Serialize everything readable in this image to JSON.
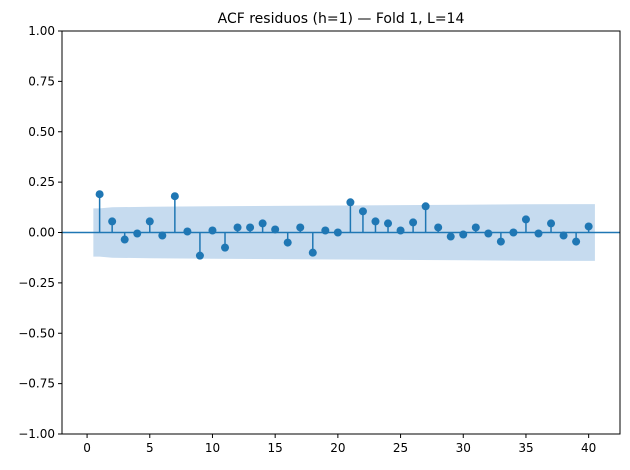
{
  "chart_data": {
    "type": "scatter",
    "subtype": "acf-stem",
    "title": "ACF residuos (h=1) — Fold 1, L=14",
    "xlabel": "",
    "ylabel": "",
    "xlim": [
      -2.0,
      42.5
    ],
    "ylim": [
      -1.0,
      1.0
    ],
    "xticks": [
      "0",
      "5",
      "10",
      "15",
      "20",
      "25",
      "30",
      "35",
      "40"
    ],
    "xtick_values": [
      0,
      5,
      10,
      15,
      20,
      25,
      30,
      35,
      40
    ],
    "yticks": [
      "−1.00",
      "−0.75",
      "−0.50",
      "−0.25",
      "0.00",
      "0.25",
      "0.50",
      "0.75",
      "1.00"
    ],
    "ytick_values": [
      -1.0,
      -0.75,
      -0.5,
      -0.25,
      0.0,
      0.25,
      0.5,
      0.75,
      1.0
    ],
    "grid": false,
    "colors": {
      "stem": "#1f77b4",
      "band": "#c6dbef"
    },
    "lags": [
      1,
      2,
      3,
      4,
      5,
      6,
      7,
      8,
      9,
      10,
      11,
      12,
      13,
      14,
      15,
      16,
      17,
      18,
      19,
      20,
      21,
      22,
      23,
      24,
      25,
      26,
      27,
      28,
      29,
      30,
      31,
      32,
      33,
      34,
      35,
      36,
      37,
      38,
      39,
      40
    ],
    "acf": [
      0.19,
      0.055,
      -0.035,
      -0.005,
      0.055,
      -0.015,
      0.18,
      0.005,
      -0.115,
      0.01,
      -0.075,
      0.025,
      0.025,
      0.045,
      0.015,
      -0.05,
      0.025,
      -0.1,
      0.01,
      0.0,
      0.15,
      0.105,
      0.055,
      0.045,
      0.01,
      0.05,
      0.13,
      0.025,
      -0.02,
      -0.01,
      0.025,
      -0.005,
      -0.045,
      0.0,
      0.065,
      -0.005,
      0.045,
      -0.015,
      -0.045,
      0.03
    ],
    "confidence_band": {
      "lags": [
        0.5,
        1,
        2,
        5,
        10,
        15,
        20,
        25,
        30,
        35,
        40,
        40.5
      ],
      "upper": [
        0.12,
        0.12,
        0.125,
        0.128,
        0.13,
        0.132,
        0.134,
        0.136,
        0.138,
        0.14,
        0.141,
        0.141
      ]
    }
  }
}
